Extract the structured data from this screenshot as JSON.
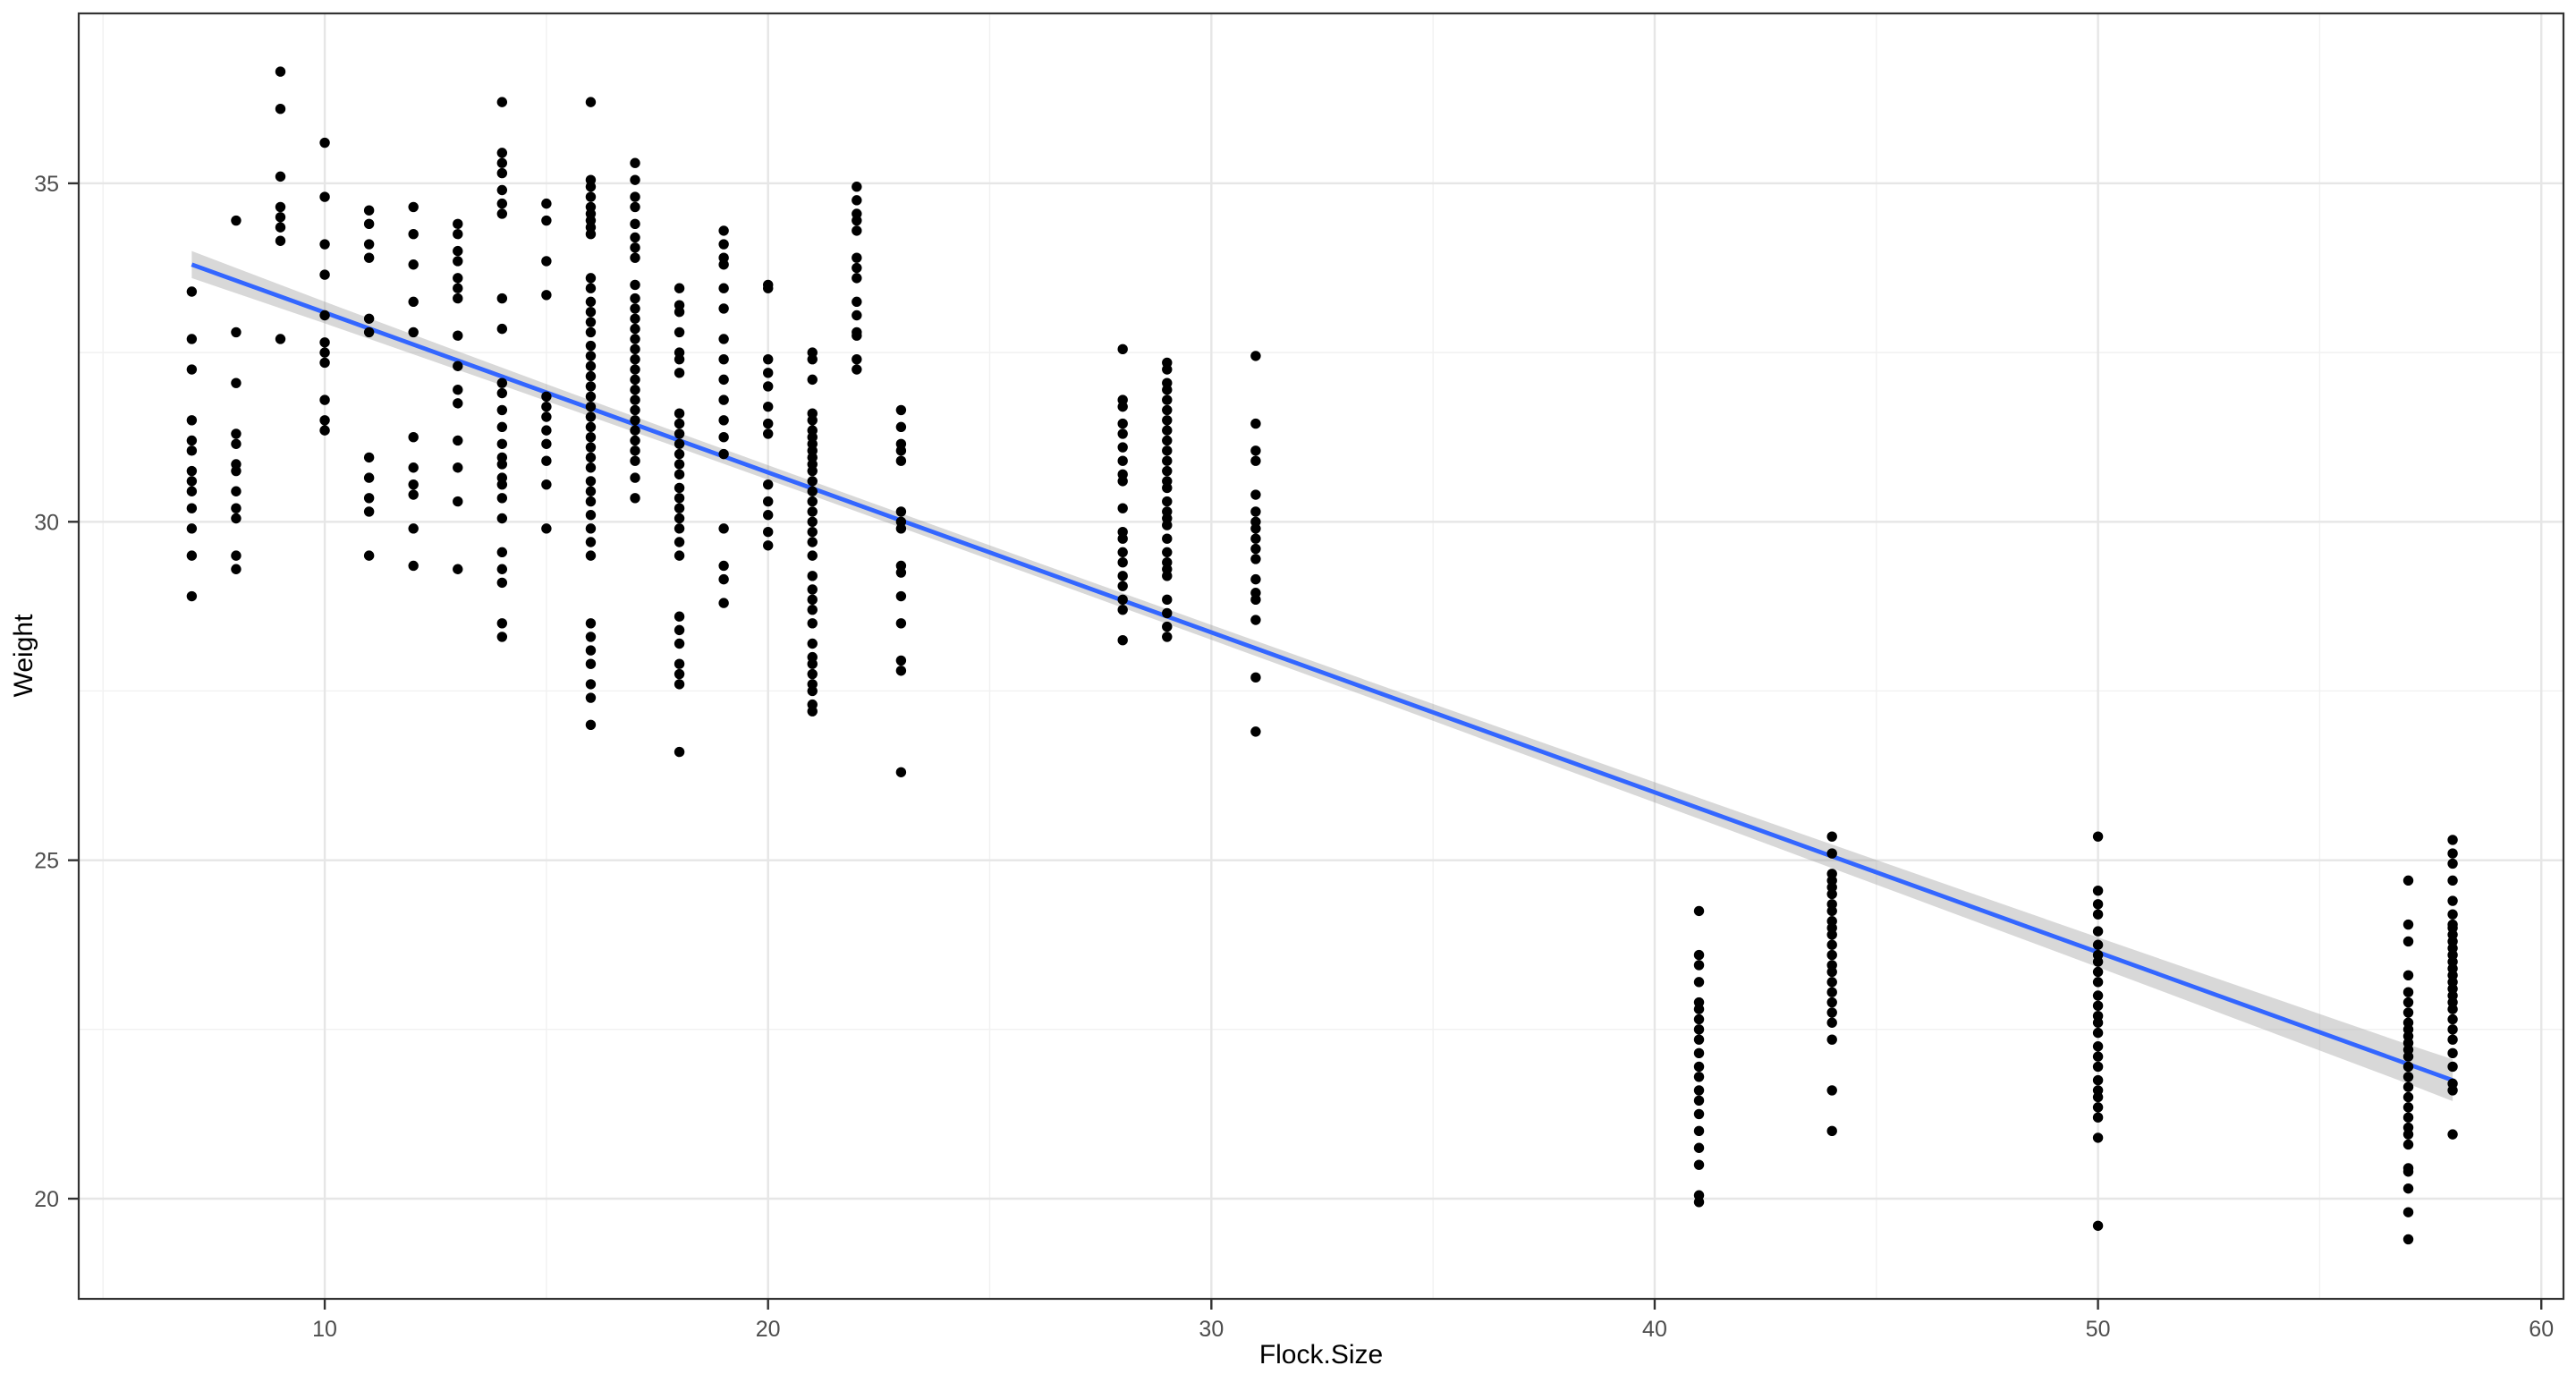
{
  "chart_data": {
    "type": "scatter",
    "title": "",
    "xlabel": "Flock.Size",
    "ylabel": "Weight",
    "legend_position": "none",
    "grid": true,
    "x_domain": [
      4.45,
      60.5
    ],
    "y_domain": [
      18.52,
      37.51
    ],
    "x_ticks": [
      10,
      20,
      30,
      40,
      50,
      60
    ],
    "x_tick_labels": [
      "10",
      "20",
      "30",
      "40",
      "50",
      "60"
    ],
    "x_minor_ticks": [
      5,
      15,
      25,
      35,
      45,
      55
    ],
    "y_ticks": [
      20,
      25,
      30,
      35
    ],
    "y_tick_labels": [
      "20",
      "25",
      "30",
      "35"
    ],
    "y_minor_ticks": [
      22.5,
      27.5,
      32.5
    ],
    "colors": {
      "point": "#000000",
      "smooth_line": "#3366FF",
      "ci_band_fill": "#999999",
      "ci_band_opacity": 0.38,
      "grid_major": "#E6E6E6",
      "grid_minor": "#F1F1F1",
      "panel_border": "#333333",
      "tick_mark": "#333333",
      "tick_label": "#4D4D4D",
      "axis_title": "#000000",
      "panel_background": "#FFFFFF",
      "figure_background": "#FFFFFF"
    },
    "regression_line": {
      "x_start": 7,
      "y_start": 33.8,
      "x_end": 58,
      "y_end": 21.75
    },
    "ci_band": [
      [
        7,
        0.2
      ],
      [
        10,
        0.16
      ],
      [
        14,
        0.13
      ],
      [
        18,
        0.11
      ],
      [
        22,
        0.105
      ],
      [
        26,
        0.105
      ],
      [
        30,
        0.11
      ],
      [
        34,
        0.12
      ],
      [
        38,
        0.14
      ],
      [
        42,
        0.16
      ],
      [
        46,
        0.19
      ],
      [
        50,
        0.22
      ],
      [
        54,
        0.26
      ],
      [
        57,
        0.29
      ],
      [
        58,
        0.31
      ]
    ],
    "columns": [
      {
        "x": 7,
        "weights": [
          33.4,
          32.7,
          32.25,
          31.5,
          31.2,
          31.05,
          30.75,
          30.6,
          30.45,
          30.2,
          29.9,
          29.5,
          28.9
        ]
      },
      {
        "x": 8,
        "weights": [
          34.45,
          32.8,
          32.05,
          31.3,
          31.15,
          30.85,
          30.75,
          30.45,
          30.2,
          30.05,
          29.5,
          29.3
        ]
      },
      {
        "x": 9,
        "weights": [
          36.65,
          36.1,
          35.1,
          34.65,
          34.5,
          34.35,
          34.15,
          32.7
        ]
      },
      {
        "x": 10,
        "weights": [
          35.6,
          34.8,
          34.1,
          33.65,
          33.05,
          32.65,
          32.5,
          32.35,
          31.8,
          31.5,
          31.35
        ]
      },
      {
        "x": 11,
        "weights": [
          34.6,
          34.4,
          34.1,
          33.9,
          33.0,
          32.8,
          30.95,
          30.65,
          30.35,
          30.15,
          29.5
        ]
      },
      {
        "x": 12,
        "weights": [
          34.65,
          34.25,
          33.8,
          33.25,
          32.8,
          31.25,
          30.8,
          30.55,
          30.4,
          29.9,
          29.35
        ]
      },
      {
        "x": 13,
        "weights": [
          34.4,
          34.25,
          34.0,
          33.85,
          33.6,
          33.45,
          33.3,
          32.75,
          32.3,
          31.95,
          31.75,
          31.2,
          30.8,
          30.3,
          29.3
        ]
      },
      {
        "x": 14,
        "weights": [
          36.2,
          35.45,
          35.3,
          35.15,
          34.9,
          34.7,
          34.55,
          33.3,
          32.85,
          32.05,
          31.9,
          31.65,
          31.4,
          31.15,
          30.95,
          30.85,
          30.65,
          30.55,
          30.35,
          30.05,
          29.55,
          29.3,
          29.1,
          28.5,
          28.3
        ]
      },
      {
        "x": 15,
        "weights": [
          34.7,
          34.45,
          33.85,
          33.35,
          31.85,
          31.7,
          31.55,
          31.35,
          31.15,
          30.9,
          30.55,
          29.9
        ]
      },
      {
        "x": 16,
        "weights": [
          36.2,
          35.05,
          34.95,
          34.8,
          34.65,
          34.55,
          34.45,
          34.35,
          34.25,
          33.6,
          33.45,
          33.25,
          33.1,
          32.95,
          32.8,
          32.6,
          32.45,
          32.3,
          32.15,
          32.0,
          31.85,
          31.7,
          31.55,
          31.4,
          31.25,
          31.1,
          30.95,
          30.8,
          30.6,
          30.45,
          30.3,
          30.1,
          29.9,
          29.7,
          29.5,
          28.5,
          28.3,
          28.1,
          27.9,
          27.6,
          27.4,
          27.0
        ]
      },
      {
        "x": 17,
        "weights": [
          35.3,
          35.05,
          34.8,
          34.65,
          34.4,
          34.2,
          34.05,
          33.9,
          33.5,
          33.3,
          33.15,
          33.0,
          32.85,
          32.7,
          32.55,
          32.4,
          32.25,
          32.1,
          31.95,
          31.8,
          31.65,
          31.5,
          31.35,
          31.2,
          31.05,
          30.9,
          30.65,
          30.35
        ]
      },
      {
        "x": 18,
        "weights": [
          33.45,
          33.2,
          33.1,
          32.8,
          32.5,
          32.4,
          32.2,
          31.6,
          31.45,
          31.3,
          31.15,
          31.0,
          30.85,
          30.7,
          30.5,
          30.35,
          30.2,
          30.05,
          29.9,
          29.7,
          29.5,
          28.6,
          28.4,
          28.2,
          27.9,
          27.75,
          27.6,
          26.6
        ]
      },
      {
        "x": 19,
        "weights": [
          34.3,
          34.1,
          33.9,
          33.8,
          33.45,
          33.15,
          32.7,
          32.4,
          32.1,
          31.8,
          31.5,
          31.25,
          31.0,
          29.9,
          29.35,
          29.15,
          28.8
        ]
      },
      {
        "x": 20,
        "weights": [
          33.5,
          33.45,
          32.4,
          32.2,
          32.0,
          31.7,
          31.45,
          31.3,
          30.55,
          30.3,
          30.1,
          29.85,
          29.65
        ]
      },
      {
        "x": 21,
        "weights": [
          32.5,
          32.4,
          32.1,
          31.6,
          31.5,
          31.35,
          31.25,
          31.15,
          31.05,
          30.95,
          30.85,
          30.75,
          30.6,
          30.45,
          30.3,
          30.15,
          30.0,
          29.85,
          29.7,
          29.5,
          29.2,
          29.0,
          28.85,
          28.7,
          28.5,
          28.2,
          28.0,
          27.9,
          27.75,
          27.6,
          27.5,
          27.3,
          27.2
        ]
      },
      {
        "x": 22,
        "weights": [
          34.95,
          34.75,
          34.55,
          34.45,
          34.3,
          33.9,
          33.75,
          33.6,
          33.25,
          33.05,
          32.8,
          32.75,
          32.4,
          32.25
        ]
      },
      {
        "x": 23,
        "weights": [
          31.65,
          31.4,
          31.15,
          31.05,
          30.9,
          30.15,
          30.0,
          29.9,
          29.35,
          29.25,
          28.9,
          28.5,
          27.95,
          27.8,
          26.3
        ]
      },
      {
        "x": 28,
        "weights": [
          32.55,
          31.8,
          31.7,
          31.45,
          31.3,
          31.1,
          30.9,
          30.7,
          30.6,
          30.2,
          29.85,
          29.75,
          29.55,
          29.4,
          29.2,
          29.05,
          28.85,
          28.7,
          28.25
        ]
      },
      {
        "x": 29,
        "weights": [
          32.35,
          32.25,
          32.05,
          31.95,
          31.8,
          31.65,
          31.5,
          31.35,
          31.2,
          31.05,
          30.9,
          30.75,
          30.6,
          30.5,
          30.3,
          30.15,
          30.05,
          29.95,
          29.75,
          29.55,
          29.4,
          29.3,
          29.2,
          28.85,
          28.65,
          28.45,
          28.3
        ]
      },
      {
        "x": 31,
        "weights": [
          32.45,
          31.45,
          31.05,
          30.9,
          30.4,
          30.15,
          30.0,
          29.9,
          29.75,
          29.6,
          29.45,
          29.15,
          28.95,
          28.85,
          28.55,
          27.7,
          26.9
        ]
      },
      {
        "x": 41,
        "weights": [
          24.25,
          23.6,
          23.45,
          23.2,
          22.9,
          22.8,
          22.65,
          22.5,
          22.35,
          22.15,
          21.95,
          21.8,
          21.6,
          21.45,
          21.25,
          21.0,
          20.75,
          20.5,
          20.05,
          19.95
        ]
      },
      {
        "x": 44,
        "weights": [
          25.35,
          25.1,
          24.8,
          24.7,
          24.6,
          24.5,
          24.35,
          24.25,
          24.1,
          24.0,
          23.9,
          23.75,
          23.6,
          23.45,
          23.35,
          23.2,
          23.05,
          22.9,
          22.75,
          22.6,
          22.35,
          21.6,
          21.0
        ]
      },
      {
        "x": 50,
        "weights": [
          25.35,
          24.55,
          24.35,
          24.2,
          23.95,
          23.75,
          23.6,
          23.5,
          23.35,
          23.2,
          23.0,
          22.85,
          22.7,
          22.6,
          22.45,
          22.25,
          22.1,
          21.95,
          21.75,
          21.6,
          21.5,
          21.35,
          21.2,
          20.9,
          19.6
        ]
      },
      {
        "x": 57,
        "weights": [
          24.7,
          24.05,
          23.8,
          23.3,
          23.05,
          22.9,
          22.75,
          22.6,
          22.5,
          22.4,
          22.3,
          22.2,
          22.1,
          21.95,
          21.8,
          21.65,
          21.5,
          21.35,
          21.2,
          21.05,
          20.95,
          20.8,
          20.45,
          20.4,
          20.15,
          19.8,
          19.4
        ]
      },
      {
        "x": 58,
        "weights": [
          25.3,
          25.1,
          24.95,
          24.7,
          24.4,
          24.2,
          24.05,
          24.0,
          23.9,
          23.8,
          23.7,
          23.6,
          23.5,
          23.4,
          23.3,
          23.2,
          23.1,
          23.0,
          22.9,
          22.8,
          22.65,
          22.5,
          22.35,
          22.15,
          21.95,
          21.7,
          21.6,
          20.95
        ]
      }
    ]
  }
}
